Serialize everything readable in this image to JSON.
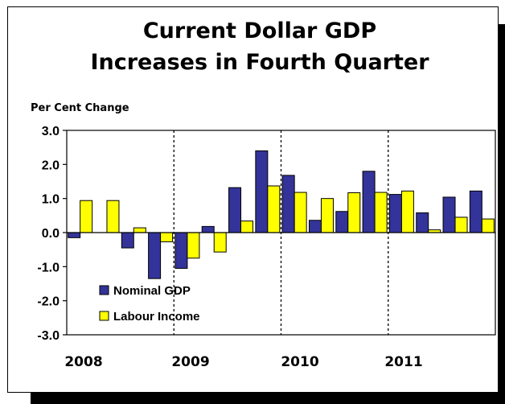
{
  "chart_data": {
    "type": "bar",
    "title": [
      "Current Dollar GDP",
      "Increases in Fourth Quarter"
    ],
    "ylabel": "Per Cent Change",
    "xlabel": "",
    "ylim": [
      -3.0,
      3.0
    ],
    "yticks": [
      "3.0",
      "2.0",
      "1.0",
      "0.0",
      "-1.0",
      "-2.0",
      "-3.0"
    ],
    "year_labels": [
      "2008",
      "2009",
      "2010",
      "2011"
    ],
    "categories": [
      "2008 Q1",
      "2008 Q2",
      "2008 Q3",
      "2008 Q4",
      "2009 Q1",
      "2009 Q2",
      "2009 Q3",
      "2009 Q4",
      "2010 Q1",
      "2010 Q2",
      "2010 Q3",
      "2010 Q4",
      "2011 Q1",
      "2011 Q2",
      "2011 Q3",
      "2011 Q4"
    ],
    "series": [
      {
        "name": "Nominal GDP",
        "color": "#33339a",
        "values": [
          -0.15,
          0.0,
          -0.45,
          -1.35,
          -1.05,
          0.18,
          1.32,
          2.4,
          1.68,
          0.36,
          0.62,
          1.8,
          1.12,
          0.58,
          1.04,
          1.22
        ]
      },
      {
        "name": "Labour Income",
        "color": "#ffff00",
        "values": [
          0.94,
          0.94,
          0.14,
          -0.27,
          -0.75,
          -0.57,
          0.34,
          1.37,
          1.18,
          1.0,
          1.17,
          1.18,
          1.22,
          0.08,
          0.45,
          0.4
        ]
      }
    ],
    "year_dividers_after": [
      4,
      8,
      12
    ],
    "grid": false,
    "legend_position": "bottom-left"
  }
}
